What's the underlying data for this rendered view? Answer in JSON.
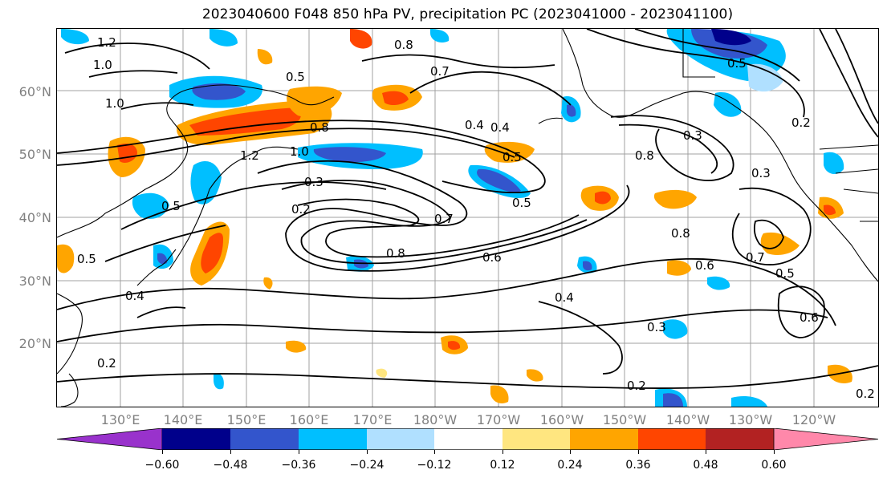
{
  "title": "2023040600 F048 850 hPa PV, precipitation PC (2023041000 - 2023041100)",
  "map": {
    "latitude_labels": [
      "20°N",
      "30°N",
      "40°N",
      "50°N",
      "60°N"
    ],
    "longitude_labels": [
      "130°E",
      "140°E",
      "150°E",
      "160°E",
      "170°E",
      "180°W",
      "170°W",
      "160°W",
      "150°W",
      "140°W",
      "130°W",
      "120°W"
    ],
    "contour_labels": [
      "1.2",
      "1.0",
      "1.0",
      "0.8",
      "0.5",
      "0.8",
      "0.7",
      "0.4",
      "0.8",
      "0.5",
      "0.8",
      "0.5",
      "0.3",
      "0.2",
      "0.7",
      "0.5",
      "0.8",
      "0.6",
      "0.6",
      "0.4",
      "0.3",
      "0.2",
      "0.5",
      "0.6",
      "0.4",
      "0.2",
      "0.2",
      "0.5",
      "1.0",
      "1.2",
      "0.3",
      "0.5",
      "0.2",
      "0.4",
      "0.7",
      "0.3"
    ],
    "colors": {
      "contour": "#000000",
      "coast": "#000000",
      "grid": "#a0a0a0",
      "positive_anomaly": [
        "#ffe680",
        "#ffa500",
        "#ff4500",
        "#b22222"
      ],
      "negative_anomaly": [
        "#b0e0ff",
        "#00bfff",
        "#3355cc",
        "#00008b"
      ]
    }
  },
  "colorbar": {
    "tick_labels": [
      "−0.60",
      "−0.48",
      "−0.36",
      "−0.24",
      "−0.12",
      "0.12",
      "0.24",
      "0.36",
      "0.48",
      "0.60"
    ],
    "bins": [
      "#9932cc",
      "#00008b",
      "#3355cc",
      "#00bfff",
      "#b0e0ff",
      "#ffffff",
      "#ffe680",
      "#ffa500",
      "#ff4500",
      "#b22222",
      "#ff88aa"
    ]
  }
}
